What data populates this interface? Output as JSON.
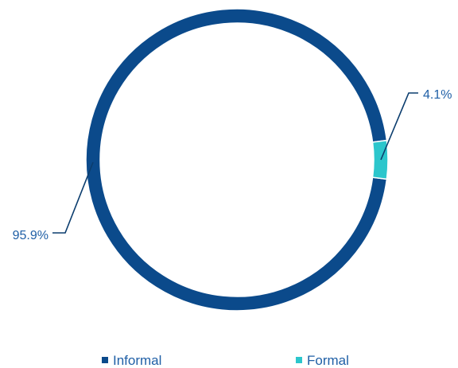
{
  "chart_data": {
    "type": "pie",
    "style": "donut",
    "categories": [
      "Informal",
      "Formal"
    ],
    "values": [
      95.9,
      4.1
    ],
    "data_labels": [
      "95.9%",
      "4.1%"
    ],
    "colors": [
      "#0b4a8b",
      "#2cc6cc"
    ],
    "label_color": "#1f5fa6",
    "legend": {
      "position": "bottom",
      "entries": [
        "Informal",
        "Formal"
      ]
    }
  }
}
